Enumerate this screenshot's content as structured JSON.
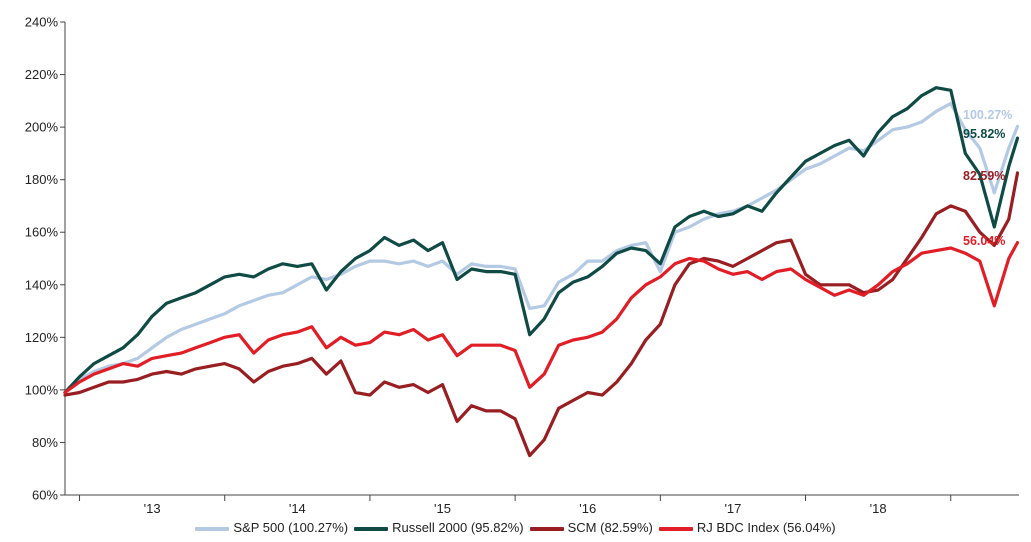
{
  "chart_data": {
    "type": "line",
    "ylim": [
      60,
      240
    ],
    "y_tick_labels": [
      "60%",
      "80%",
      "100%",
      "120%",
      "140%",
      "160%",
      "180%",
      "200%",
      "220%",
      "240%"
    ],
    "y_ticks": [
      60,
      80,
      100,
      120,
      140,
      160,
      180,
      200,
      220,
      240
    ],
    "x_tick_labels": [
      "'13",
      "'14",
      "'15",
      "'16",
      "'17",
      "'18"
    ],
    "x_ticks": [
      2013,
      2014,
      2015,
      2016,
      2017,
      2018
    ],
    "xlim": [
      2012.4,
      2018.97
    ],
    "grid": false,
    "legend_position": "bottom",
    "series": [
      {
        "name": "S&P 500 (100.27%)",
        "end_label": "100.27%",
        "color": "#b4c9e3",
        "x": [
          2012.4,
          2012.5,
          2012.6,
          2012.7,
          2012.8,
          2012.9,
          2013.0,
          2013.1,
          2013.2,
          2013.3,
          2013.4,
          2013.5,
          2013.6,
          2013.7,
          2013.8,
          2013.9,
          2014.0,
          2014.1,
          2014.2,
          2014.3,
          2014.4,
          2014.5,
          2014.6,
          2014.7,
          2014.8,
          2014.9,
          2015.0,
          2015.1,
          2015.2,
          2015.3,
          2015.4,
          2015.5,
          2015.6,
          2015.7,
          2015.8,
          2015.9,
          2016.0,
          2016.1,
          2016.2,
          2016.3,
          2016.4,
          2016.5,
          2016.6,
          2016.7,
          2016.8,
          2016.9,
          2017.0,
          2017.1,
          2017.2,
          2017.3,
          2017.4,
          2017.5,
          2017.6,
          2017.7,
          2017.8,
          2017.9,
          2018.0,
          2018.1,
          2018.2,
          2018.3,
          2018.4,
          2018.5,
          2018.6,
          2018.7,
          2018.8,
          2018.9,
          2018.96
        ],
        "values": [
          99,
          104,
          107,
          109,
          110,
          112,
          116,
          120,
          123,
          125,
          127,
          129,
          132,
          134,
          136,
          137,
          140,
          143,
          142,
          144,
          147,
          149,
          149,
          148,
          149,
          147,
          149,
          144,
          148,
          147,
          147,
          146,
          131,
          132,
          141,
          144,
          149,
          149,
          153,
          155,
          156,
          145,
          160,
          162,
          165,
          167,
          168,
          170,
          173,
          176,
          180,
          184,
          186,
          189,
          192,
          191,
          195,
          199,
          200,
          202,
          206,
          209,
          199,
          192,
          175,
          192,
          200.27
        ]
      },
      {
        "name": "Russell 2000 (95.82%)",
        "end_label": "95.82%",
        "color": "#0f4a45",
        "x": [
          2012.4,
          2012.5,
          2012.6,
          2012.7,
          2012.8,
          2012.9,
          2013.0,
          2013.1,
          2013.2,
          2013.3,
          2013.4,
          2013.5,
          2013.6,
          2013.7,
          2013.8,
          2013.9,
          2014.0,
          2014.1,
          2014.2,
          2014.3,
          2014.4,
          2014.5,
          2014.6,
          2014.7,
          2014.8,
          2014.9,
          2015.0,
          2015.1,
          2015.2,
          2015.3,
          2015.4,
          2015.5,
          2015.6,
          2015.7,
          2015.8,
          2015.9,
          2016.0,
          2016.1,
          2016.2,
          2016.3,
          2016.4,
          2016.5,
          2016.6,
          2016.7,
          2016.8,
          2016.9,
          2017.0,
          2017.1,
          2017.2,
          2017.3,
          2017.4,
          2017.5,
          2017.6,
          2017.7,
          2017.8,
          2017.9,
          2018.0,
          2018.1,
          2018.2,
          2018.3,
          2018.4,
          2018.5,
          2018.6,
          2018.7,
          2018.8,
          2018.9,
          2018.96
        ],
        "values": [
          99,
          105,
          110,
          113,
          116,
          121,
          128,
          133,
          135,
          137,
          140,
          143,
          144,
          143,
          146,
          148,
          147,
          148,
          138,
          145,
          150,
          153,
          158,
          155,
          157,
          153,
          156,
          142,
          146,
          145,
          145,
          144,
          121,
          127,
          137,
          141,
          143,
          147,
          152,
          154,
          153,
          148,
          162,
          166,
          168,
          166,
          167,
          170,
          168,
          175,
          181,
          187,
          190,
          193,
          195,
          189,
          198,
          204,
          207,
          212,
          215,
          214,
          190,
          182,
          162,
          185,
          195.82
        ]
      },
      {
        "name": "SCM (82.59%)",
        "end_label": "82.59%",
        "color": "#981e22",
        "x": [
          2012.4,
          2012.5,
          2012.6,
          2012.7,
          2012.8,
          2012.9,
          2013.0,
          2013.1,
          2013.2,
          2013.3,
          2013.4,
          2013.5,
          2013.6,
          2013.7,
          2013.8,
          2013.9,
          2014.0,
          2014.1,
          2014.2,
          2014.3,
          2014.4,
          2014.5,
          2014.6,
          2014.7,
          2014.8,
          2014.9,
          2015.0,
          2015.1,
          2015.2,
          2015.3,
          2015.4,
          2015.5,
          2015.6,
          2015.7,
          2015.8,
          2015.9,
          2016.0,
          2016.1,
          2016.2,
          2016.3,
          2016.4,
          2016.5,
          2016.6,
          2016.7,
          2016.8,
          2016.9,
          2017.0,
          2017.1,
          2017.2,
          2017.3,
          2017.4,
          2017.5,
          2017.6,
          2017.7,
          2017.8,
          2017.9,
          2018.0,
          2018.1,
          2018.2,
          2018.3,
          2018.4,
          2018.5,
          2018.6,
          2018.7,
          2018.8,
          2018.9,
          2018.96
        ],
        "values": [
          98,
          99,
          101,
          103,
          103,
          104,
          106,
          107,
          106,
          108,
          109,
          110,
          108,
          103,
          107,
          109,
          110,
          112,
          106,
          111,
          99,
          98,
          103,
          101,
          102,
          99,
          102,
          88,
          94,
          92,
          92,
          89,
          75,
          81,
          93,
          96,
          99,
          98,
          103,
          110,
          119,
          125,
          140,
          148,
          150,
          149,
          147,
          150,
          153,
          156,
          157,
          144,
          140,
          140,
          140,
          137,
          138,
          142,
          150,
          158,
          167,
          170,
          168,
          160,
          155,
          165,
          182.59
        ]
      },
      {
        "name": "RJ BDC Index (56.04%)",
        "end_label": "56.04%",
        "color": "#e11d26",
        "x": [
          2012.4,
          2012.5,
          2012.6,
          2012.7,
          2012.8,
          2012.9,
          2013.0,
          2013.1,
          2013.2,
          2013.3,
          2013.4,
          2013.5,
          2013.6,
          2013.7,
          2013.8,
          2013.9,
          2014.0,
          2014.1,
          2014.2,
          2014.3,
          2014.4,
          2014.5,
          2014.6,
          2014.7,
          2014.8,
          2014.9,
          2015.0,
          2015.1,
          2015.2,
          2015.3,
          2015.4,
          2015.5,
          2015.6,
          2015.7,
          2015.8,
          2015.9,
          2016.0,
          2016.1,
          2016.2,
          2016.3,
          2016.4,
          2016.5,
          2016.6,
          2016.7,
          2016.8,
          2016.9,
          2017.0,
          2017.1,
          2017.2,
          2017.3,
          2017.4,
          2017.5,
          2017.6,
          2017.7,
          2017.8,
          2017.9,
          2018.0,
          2018.1,
          2018.2,
          2018.3,
          2018.4,
          2018.5,
          2018.6,
          2018.7,
          2018.8,
          2018.9,
          2018.96
        ],
        "values": [
          99,
          103,
          106,
          108,
          110,
          109,
          112,
          113,
          114,
          116,
          118,
          120,
          121,
          114,
          119,
          121,
          122,
          124,
          116,
          120,
          117,
          118,
          122,
          121,
          123,
          119,
          121,
          113,
          117,
          117,
          117,
          115,
          101,
          106,
          117,
          119,
          120,
          122,
          127,
          135,
          140,
          143,
          148,
          150,
          149,
          146,
          144,
          145,
          142,
          145,
          146,
          142,
          139,
          136,
          138,
          136,
          140,
          145,
          148,
          152,
          153,
          154,
          152,
          149,
          132,
          150,
          156.04
        ]
      }
    ]
  }
}
